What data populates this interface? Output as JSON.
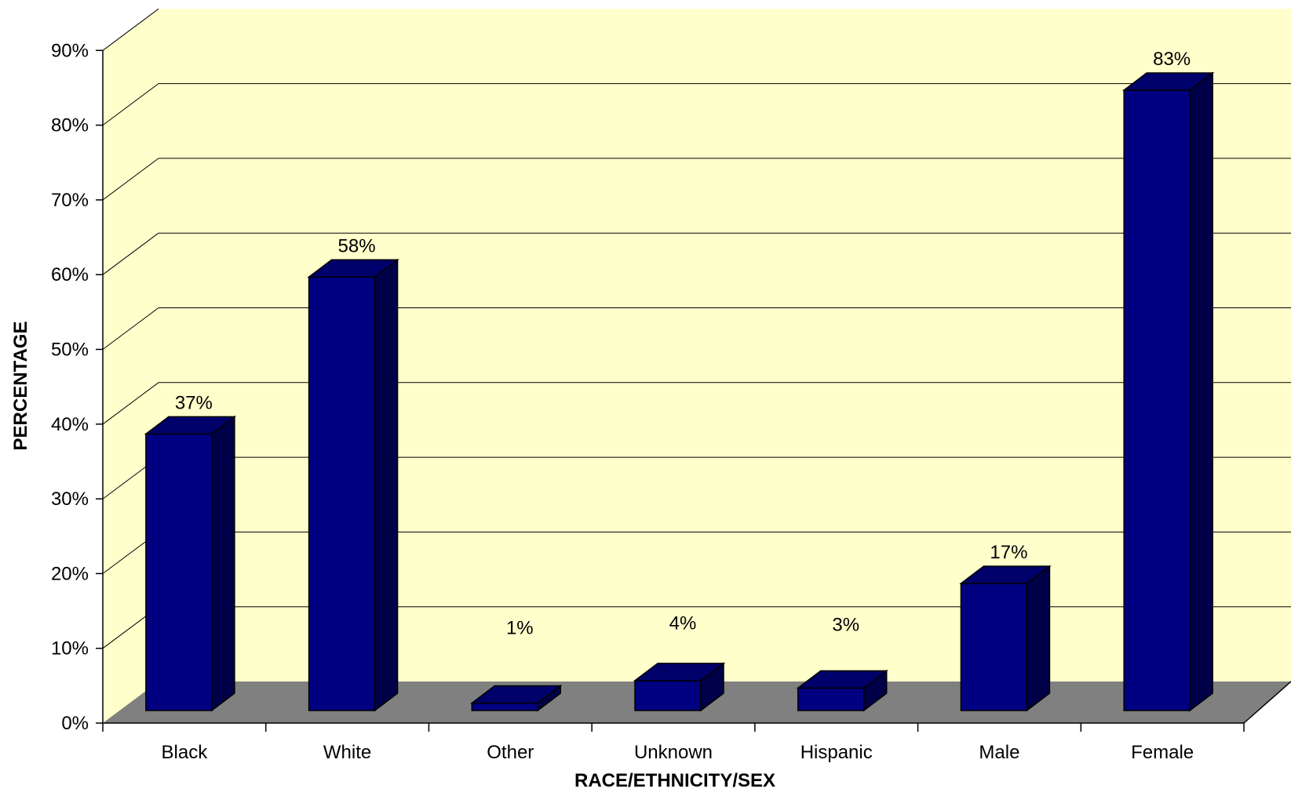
{
  "chart_data": {
    "type": "bar",
    "style": "3d-column",
    "categories": [
      "Black",
      "White",
      "Other",
      "Unknown",
      "Hispanic",
      "Male",
      "Female"
    ],
    "values": [
      37,
      58,
      1,
      4,
      3,
      17,
      83
    ],
    "data_labels": [
      "37%",
      "58%",
      "1%",
      "4%",
      "3%",
      "17%",
      "83%"
    ],
    "title": "",
    "xlabel": "RACE/ETHNICITY/SEX",
    "ylabel": "PERCENTAGE",
    "ylim": [
      0,
      90
    ],
    "yticks": [
      "0%",
      "10%",
      "20%",
      "30%",
      "40%",
      "50%",
      "60%",
      "70%",
      "80%",
      "90%"
    ],
    "grid": true,
    "legend": "none"
  },
  "colors": {
    "bar_front": "#000080",
    "bar_side": "#000048",
    "bar_top": "#00006a",
    "wall": "#ffffcc",
    "floor": "#808080",
    "gridline": "#000000"
  }
}
